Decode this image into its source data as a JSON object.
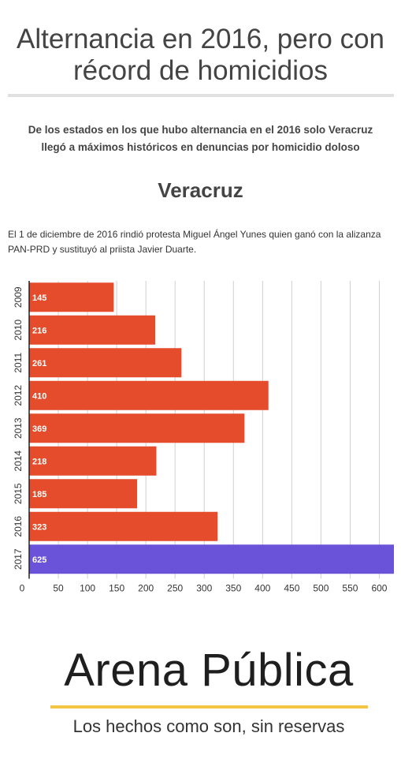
{
  "header": {
    "title": "Alternancia en 2016, pero con récord de homicidios",
    "subtitle": "De los estados en los que hubo alternancia en el 2016 solo Veracruz llegó a máximos históricos en denuncias por homicidio doloso",
    "state": "Veracruz",
    "note": "El 1 de diciembre de 2016 rindió protesta Miguel Ángel Yunes quien ganó con la alizanza PAN-PRD y sustituyó al priista Javier Duarte."
  },
  "chart_data": {
    "type": "bar",
    "orientation": "horizontal",
    "categories": [
      "2009",
      "2010",
      "2011",
      "2012",
      "2013",
      "2014",
      "2015",
      "2016",
      "2017"
    ],
    "values": [
      145,
      216,
      261,
      410,
      369,
      218,
      185,
      323,
      625
    ],
    "xlim": [
      0,
      625
    ],
    "xticks": [
      0,
      50,
      100,
      150,
      200,
      250,
      300,
      350,
      400,
      450,
      500,
      550,
      600
    ],
    "grid": true,
    "colors": {
      "default": "#e44c2b",
      "highlight": "#6a52d9",
      "highlight_category": "2017"
    }
  },
  "footer": {
    "brand": "Arena Pública",
    "tagline": "Los hechos como son, sin reservas"
  }
}
